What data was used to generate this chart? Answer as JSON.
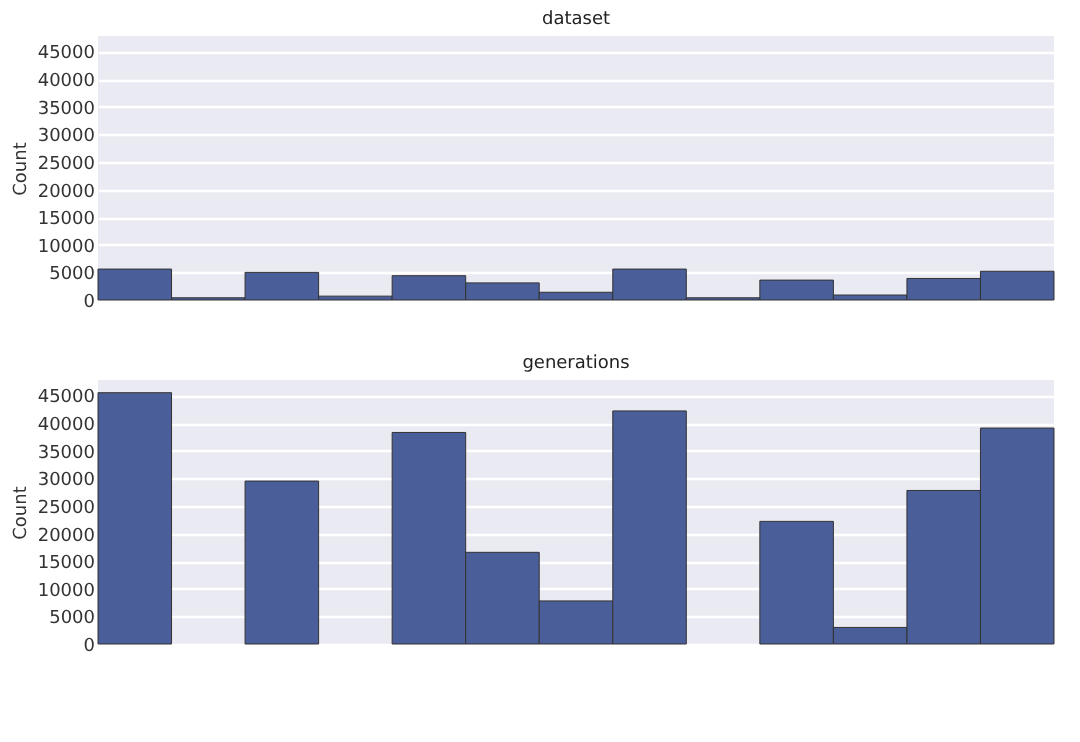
{
  "chart_data": [
    {
      "type": "bar",
      "title": "dataset",
      "ylabel": "Count",
      "categories": [
        null,
        null,
        null,
        null,
        null,
        null,
        null,
        null,
        null,
        null,
        null,
        null,
        null
      ],
      "values": [
        5600,
        400,
        5000,
        700,
        4400,
        3100,
        1400,
        5600,
        400,
        3600,
        900,
        3900,
        5200
      ],
      "color": "#4a5f99",
      "ylim": [
        0,
        47800
      ],
      "yticks": [
        0,
        5000,
        10000,
        15000,
        20000,
        25000,
        30000,
        35000,
        40000,
        45000
      ],
      "grid": "y",
      "tick_labels": "y"
    },
    {
      "type": "bar",
      "title": "generations",
      "ylabel": "Count",
      "categories": [
        null,
        null,
        null,
        null,
        null,
        null,
        null,
        null,
        null,
        null,
        null,
        null,
        null
      ],
      "values": [
        45500,
        null,
        29500,
        null,
        38300,
        16600,
        7800,
        42200,
        null,
        22200,
        3000,
        27800,
        39100
      ],
      "color": "#4a5f99",
      "ylim": [
        0,
        47800
      ],
      "yticks": [
        0,
        5000,
        10000,
        15000,
        20000,
        25000,
        30000,
        35000,
        40000,
        45000
      ],
      "grid": "y",
      "tick_labels": "y"
    }
  ]
}
